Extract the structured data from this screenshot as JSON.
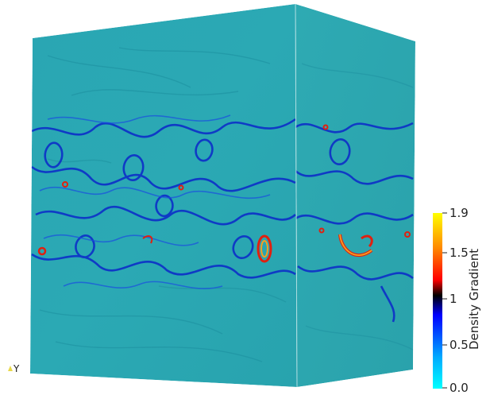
{
  "view": {
    "description_colors": {
      "background": "#ffffff",
      "field_base": "#2aa8b4",
      "field_dark": "#1f93a3",
      "vortex_blue": "#0a2bd6",
      "vortex_red": "#e02010",
      "vortex_orange": "#f5a020"
    }
  },
  "colorbar": {
    "title": "Density Gradient",
    "ticks": [
      "1.9",
      "1.5",
      "1",
      "0.5",
      "0.0"
    ],
    "tick_values": [
      1.9,
      1.5,
      1.0,
      0.5,
      0.0
    ],
    "range": [
      0.0,
      1.9
    ],
    "gradient_colors": [
      "#00ffff",
      "#00aaff",
      "#0000ff",
      "#000000",
      "#ff0000",
      "#ff8800",
      "#ffff00"
    ]
  },
  "orientation": {
    "axis_label": "Y",
    "axis_icon": "axis-triad-icon"
  }
}
